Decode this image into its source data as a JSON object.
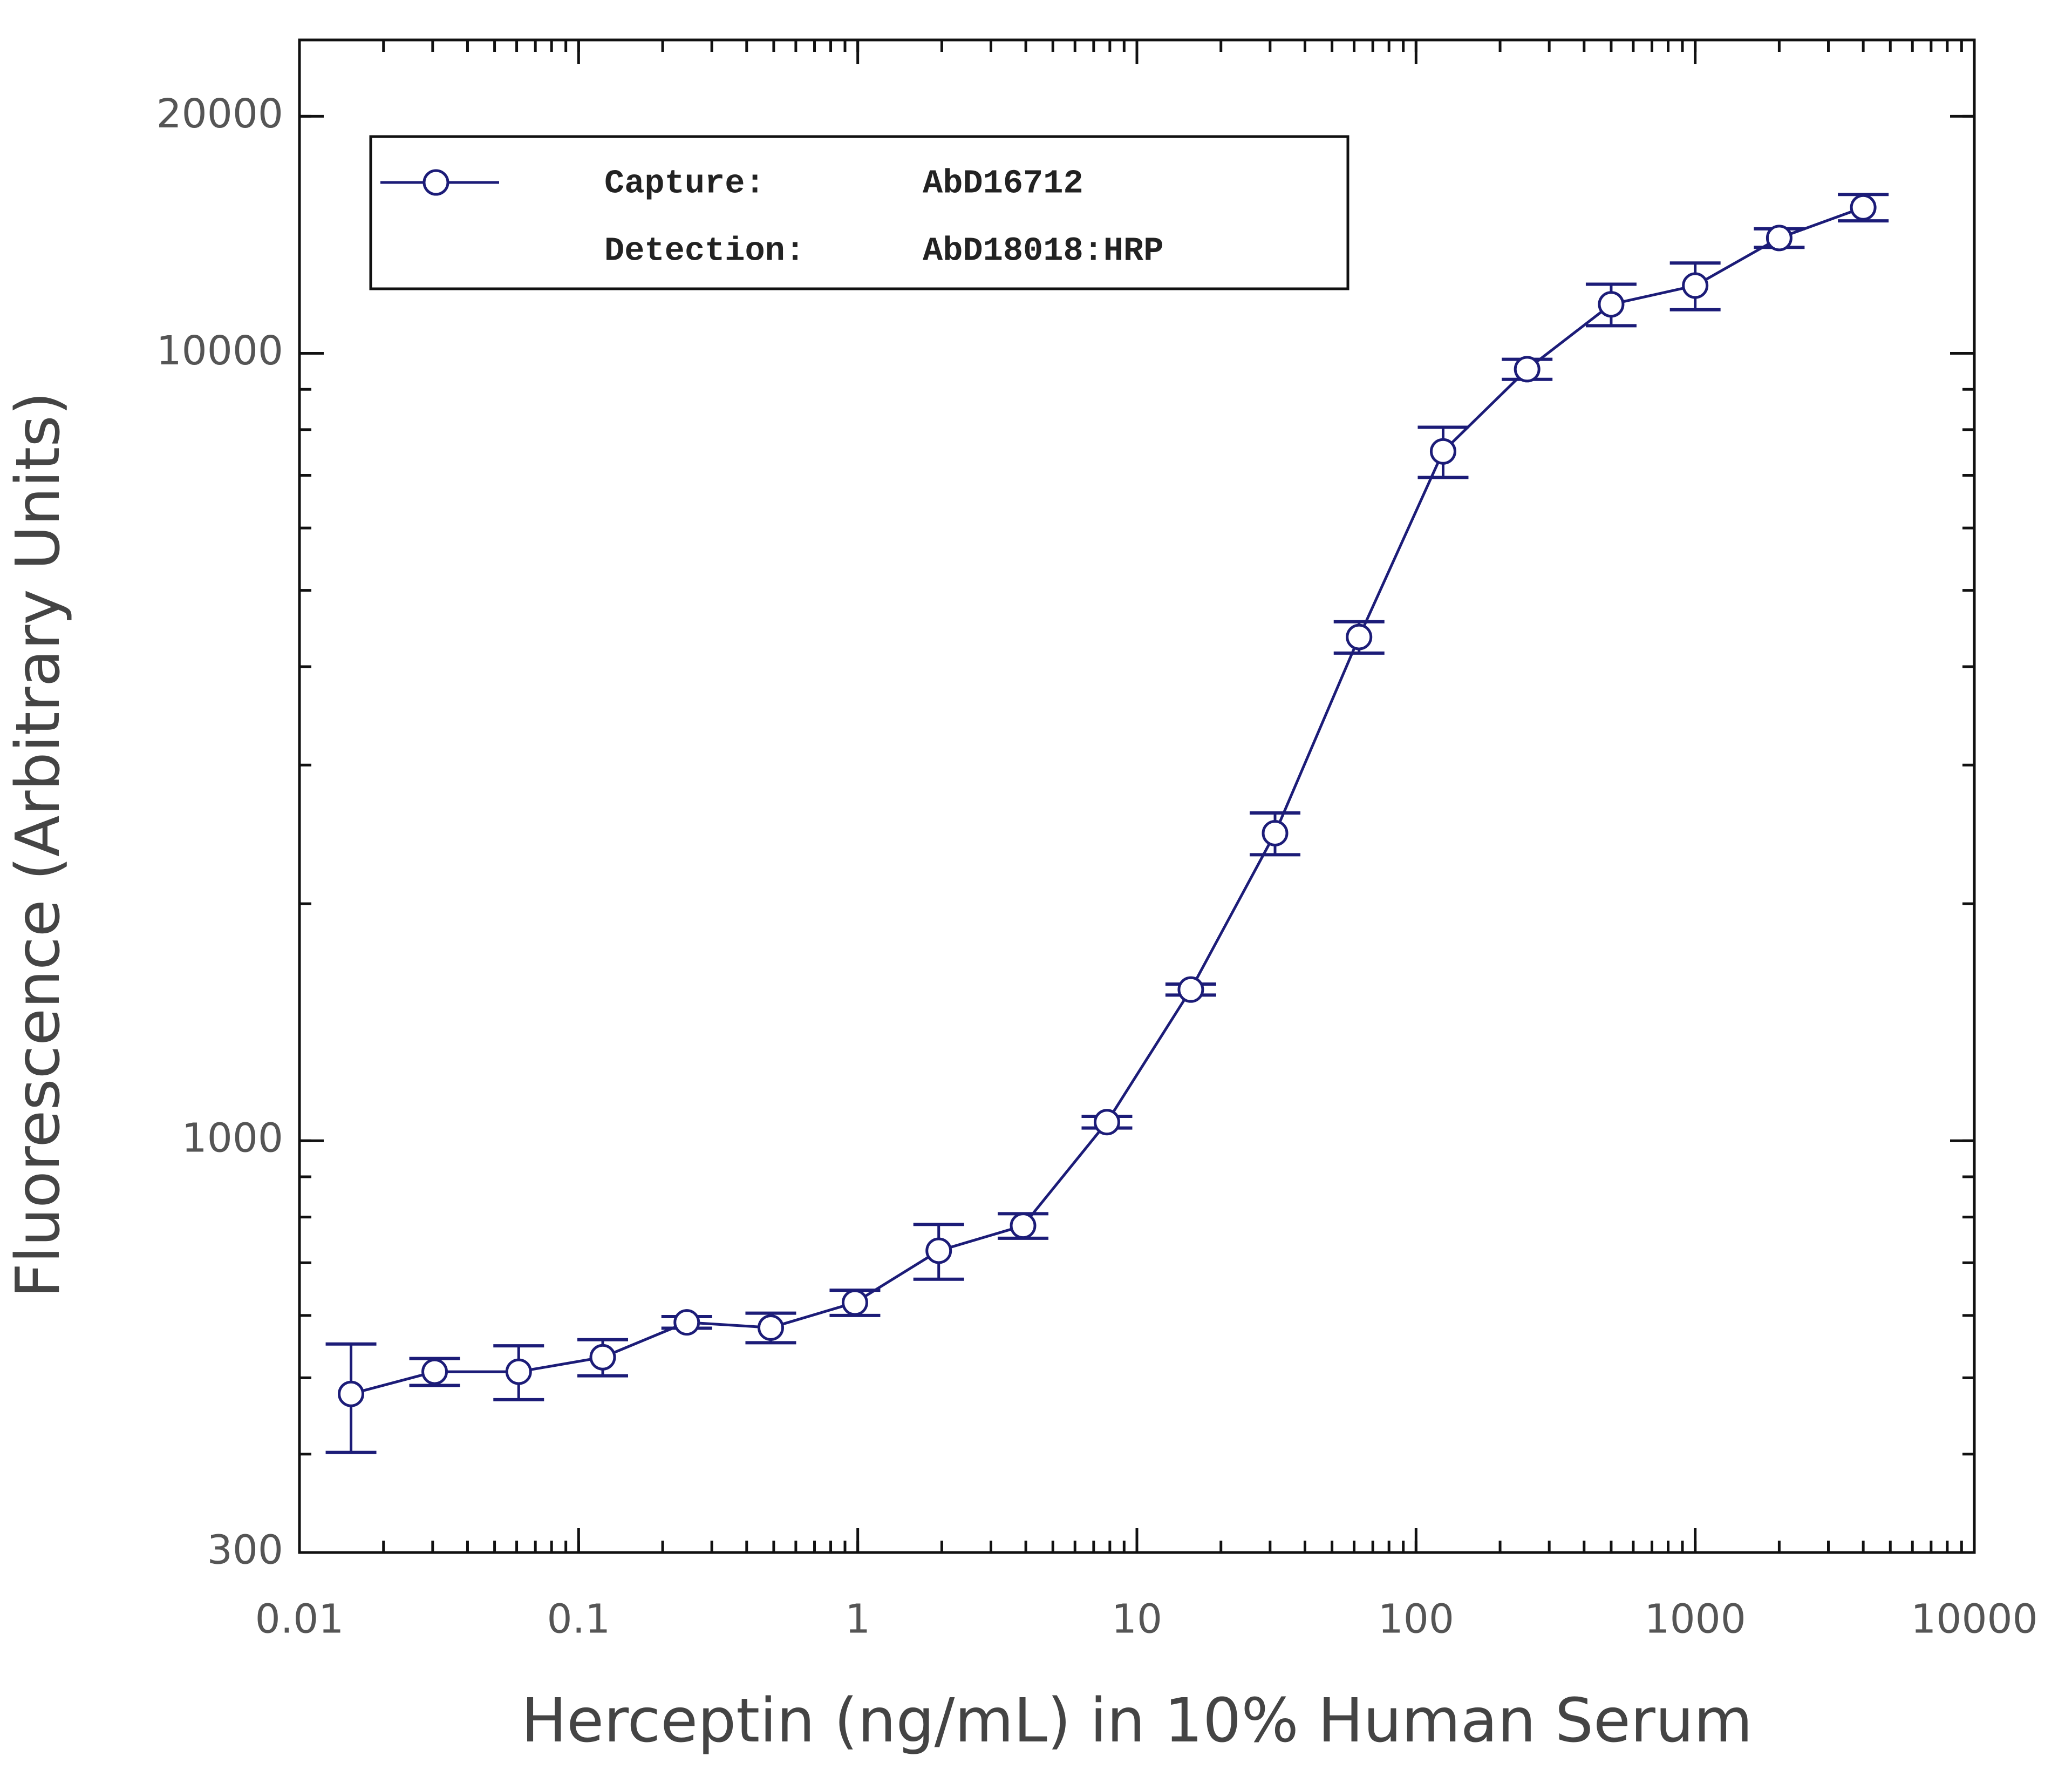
{
  "chart_data": {
    "type": "line",
    "x_label": "Herceptin (ng/mL) in 10% Human Serum",
    "y_label": "Fluorescence (Arbitrary Units)",
    "x": [
      0.0153,
      0.0305,
      0.061,
      0.122,
      0.244,
      0.488,
      0.977,
      1.95,
      3.91,
      7.81,
      15.6,
      31.25,
      62.5,
      125,
      250,
      500,
      1000,
      2000,
      4000
    ],
    "series": [
      {
        "color": "#1c1c78",
        "values": [
          477,
          509,
          509,
          531,
          588,
          579,
          623,
          725,
          780,
          1056,
          1556,
          2458,
          4362,
          7506,
          9546,
          11540,
          12190,
          14010,
          15320
        ],
        "errors": [
          75,
          20,
          40,
          28,
          10,
          25,
          23,
          58,
          28,
          18,
          25,
          150,
          200,
          550,
          280,
          700,
          830,
          380,
          590
        ]
      }
    ],
    "legend": {
      "rows": [
        [
          "Capture:",
          "AbD16712"
        ],
        [
          "Detection:",
          "AbD18018:HRP"
        ]
      ]
    },
    "xlim": [
      0.01,
      10000
    ],
    "ylim": [
      300,
      25000
    ],
    "xticks": [
      0.01,
      0.1,
      1,
      10,
      100,
      1000,
      10000
    ],
    "yticks": [
      300,
      1000,
      10000,
      20000
    ],
    "xscale": "log",
    "yscale": "log",
    "grid": false
  }
}
